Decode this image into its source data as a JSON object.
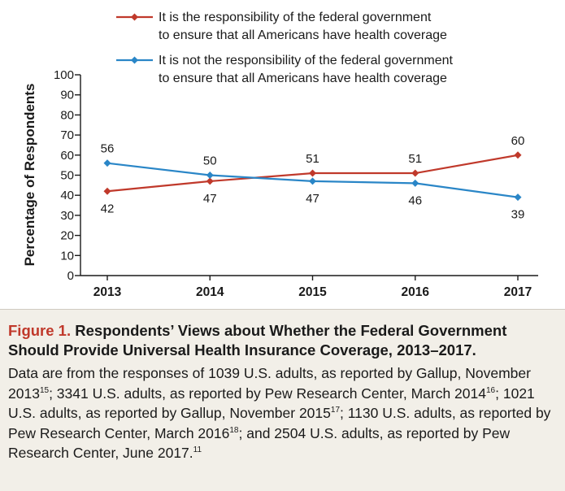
{
  "chart_data": {
    "type": "line",
    "x": [
      "2013",
      "2014",
      "2015",
      "2016",
      "2017"
    ],
    "ylabel": "Percentage of Respondents",
    "xlabel": "",
    "ylim": [
      0,
      100
    ],
    "yticks": [
      0,
      10,
      20,
      30,
      40,
      50,
      60,
      70,
      80,
      90,
      100
    ],
    "legend_position": "top",
    "series": [
      {
        "name_line1": "It is the responsibility of the federal government",
        "name_line2": "to ensure that all Americans have health coverage",
        "values": [
          42,
          47,
          51,
          51,
          60
        ],
        "labels": [
          "42",
          "47",
          "51",
          "51",
          "60"
        ],
        "color": "#c0392b"
      },
      {
        "name_line1": "It is not the responsibility of the federal government",
        "name_line2": "to ensure that all Americans have health coverage",
        "values": [
          56,
          50,
          47,
          46,
          39
        ],
        "labels": [
          "56",
          "50",
          "47",
          "46",
          "39"
        ],
        "color": "#2a86c7"
      }
    ]
  },
  "caption": {
    "figure_label": "Figure 1.",
    "title": "Respondents’ Views about Whether the Federal Government Should Provide Universal Health Insurance Coverage, 2013–2017.",
    "segments": [
      {
        "text": "Data are from the responses of 1039 U.S. adults, as reported by Gallup, November 2013",
        "ref": "15"
      },
      {
        "text": "; 3341 U.S. adults, as reported by Pew Research Center, March 2014",
        "ref": "16"
      },
      {
        "text": "; 1021 U.S. adults, as reported by Gallup, November 2015",
        "ref": "17"
      },
      {
        "text": "; 1130 U.S. adults, as reported by Pew Research Center, March 2016",
        "ref": "18"
      },
      {
        "text": "; and 2504 U.S. adults, as reported by Pew Research Center, June 2017.",
        "ref": "11"
      }
    ]
  }
}
